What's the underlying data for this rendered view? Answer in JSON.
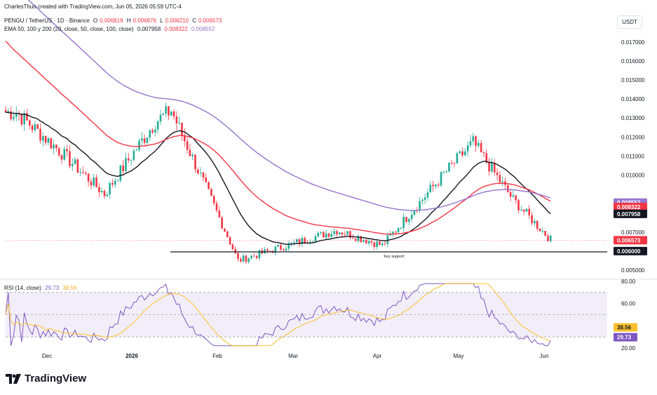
{
  "header": {
    "creator_line": "CharlesThuo created with TradingView.com, Jun 05, 2026 05:59 UTC-4",
    "symbol": "PENGU / TetherUS · 1D · Binance",
    "ohlc": [
      {
        "label": "O",
        "value": "0.006819"
      },
      {
        "label": "H",
        "value": "0.006876"
      },
      {
        "label": "L",
        "value": "0.006210"
      },
      {
        "label": "C",
        "value": "0.006573"
      }
    ],
    "ema_label": "EMA 50, 100 y 200 (20, close, 50, close, 100, close)",
    "ema_values": [
      "0.007958",
      "0.008322",
      "0.008552"
    ],
    "currency_button": "USDT"
  },
  "rsi_header": {
    "label": "RSI (14, close)",
    "rsi": "29.73",
    "ma": "38.56"
  },
  "annotation": {
    "support_label": "Key support",
    "support_level": 0.006
  },
  "colors": {
    "up": "#22ab94",
    "down": "#f23645",
    "ema20": "#131722",
    "ema50": "#f23645",
    "ema100": "#9575cd",
    "rsi_line": "#7e57c2",
    "rsi_ma": "#fbc02d",
    "rsi_band": "#ede7f6"
  },
  "brand": {
    "name": "TradingView"
  },
  "chart_data": [
    {
      "type": "candlestick",
      "title": "PENGU / TetherUS · 1D · Binance",
      "x_tick_labels": [
        "Dec",
        "2026",
        "Feb",
        "Mar",
        "Apr",
        "May",
        "Jun"
      ],
      "y_tick_labels": [
        "0.017000",
        "0.016000",
        "0.015000",
        "0.014000",
        "0.013000",
        "0.012000",
        "0.011000",
        "0.010000",
        "0.007000",
        "0.005000"
      ],
      "ylim": [
        0.0045,
        0.0182
      ],
      "scale": "linear",
      "grid": false,
      "price_badges": [
        {
          "label": "0.008552",
          "value": 0.008552,
          "color": "#9575cd"
        },
        {
          "label": "0.008322",
          "value": 0.008322,
          "color": "#f23645"
        },
        {
          "label": "0.007958",
          "value": 0.007958,
          "color": "#131722"
        },
        {
          "label": "0.006573",
          "value": 0.006573,
          "color": "#f23645"
        },
        {
          "label": "0.006000",
          "value": 0.006,
          "color": "#131722"
        }
      ],
      "key_points": [
        {
          "date": "Nov 15",
          "close": 0.0133
        },
        {
          "date": "Dec 01",
          "close": 0.0113
        },
        {
          "date": "Dec 18",
          "close": 0.009
        },
        {
          "date": "Jan 06",
          "close": 0.0128
        },
        {
          "date": "Jan 12",
          "close": 0.0134
        },
        {
          "date": "Feb 02",
          "close": 0.0068
        },
        {
          "date": "Feb 06",
          "close": 0.0055
        },
        {
          "date": "Mar 15",
          "close": 0.0071
        },
        {
          "date": "Apr 01",
          "close": 0.0063
        },
        {
          "date": "Apr 25",
          "close": 0.0102
        },
        {
          "date": "May 05",
          "close": 0.0117
        },
        {
          "date": "May 20",
          "close": 0.0087
        },
        {
          "date": "Jun 03",
          "close": 0.0066
        }
      ],
      "series": [
        {
          "name": "EMA 20",
          "last": 0.007958
        },
        {
          "name": "EMA 50",
          "last": 0.008322
        },
        {
          "name": "EMA 100",
          "last": 0.008552
        }
      ]
    },
    {
      "type": "line",
      "title": "RSI (14, close)",
      "y_tick_labels": [
        "80.00",
        "60.00",
        "20.00"
      ],
      "ylim": [
        18,
        81
      ],
      "band": [
        30,
        70
      ],
      "series": [
        {
          "name": "RSI",
          "last": 29.73
        },
        {
          "name": "RSI MA",
          "last": 38.56
        }
      ],
      "badges": [
        {
          "label": "38.56",
          "value": 38.56,
          "color": "#fbc02d"
        },
        {
          "label": "29.73",
          "value": 29.73,
          "color": "#7e57c2"
        }
      ]
    }
  ]
}
